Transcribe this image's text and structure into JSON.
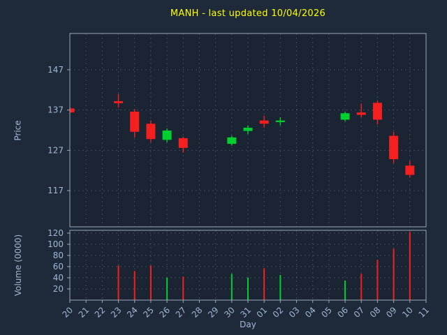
{
  "title": "MANH - last updated 10/04/2026",
  "axes": {
    "price_label": "Price",
    "volume_label": "Volume (0000)",
    "x_label": "Day"
  },
  "colors": {
    "background": "#1e2a3a",
    "panel": "#1a2432",
    "border": "#9aa8ba",
    "grid": "#7487a0",
    "text": "#a3b7d4",
    "title": "#ffff00",
    "up": "#00cf30",
    "down": "#f42020"
  },
  "chart_data": {
    "type": "candlestick",
    "title": "MANH - last updated 10/04/2026",
    "xlabel": "Day",
    "ylabel_price": "Price",
    "ylabel_volume": "Volume (0000)",
    "x_categories": [
      "20",
      "21",
      "22",
      "23",
      "24",
      "25",
      "26",
      "27",
      "28",
      "29",
      "30",
      "31",
      "01",
      "02",
      "03",
      "04",
      "05",
      "06",
      "07",
      "08",
      "09",
      "10",
      "11"
    ],
    "price_ticks": [
      117,
      127,
      137,
      147
    ],
    "price_range": [
      108,
      156
    ],
    "volume_ticks": [
      20,
      40,
      60,
      80,
      100,
      120
    ],
    "volume_range": [
      0,
      125
    ],
    "grid": true,
    "candles": [
      {
        "day": "20",
        "open": 137.4,
        "high": 137.8,
        "low": 136.2,
        "close": 136.4,
        "volume": 0
      },
      {
        "day": "23",
        "open": 139.2,
        "high": 141.0,
        "low": 137.6,
        "close": 138.7,
        "volume": 62
      },
      {
        "day": "24",
        "open": 136.6,
        "high": 137.2,
        "low": 130.2,
        "close": 131.6,
        "volume": 52
      },
      {
        "day": "25",
        "open": 133.6,
        "high": 134.4,
        "low": 129.0,
        "close": 129.8,
        "volume": 62
      },
      {
        "day": "26",
        "open": 129.6,
        "high": 132.4,
        "low": 129.0,
        "close": 131.9,
        "volume": 40
      },
      {
        "day": "27",
        "open": 130.0,
        "high": 130.4,
        "low": 126.4,
        "close": 127.6,
        "volume": 42
      },
      {
        "day": "30",
        "open": 128.6,
        "high": 130.6,
        "low": 128.2,
        "close": 130.2,
        "volume": 47
      },
      {
        "day": "31",
        "open": 131.8,
        "high": 133.2,
        "low": 131.0,
        "close": 132.6,
        "volume": 40
      },
      {
        "day": "01",
        "open": 134.4,
        "high": 135.6,
        "low": 132.6,
        "close": 133.6,
        "volume": 57
      },
      {
        "day": "02",
        "open": 134.0,
        "high": 135.2,
        "low": 133.2,
        "close": 134.4,
        "volume": 45
      },
      {
        "day": "06",
        "open": 134.6,
        "high": 136.6,
        "low": 134.2,
        "close": 136.2,
        "volume": 35
      },
      {
        "day": "07",
        "open": 136.4,
        "high": 138.6,
        "low": 135.2,
        "close": 135.8,
        "volume": 47
      },
      {
        "day": "08",
        "open": 138.8,
        "high": 139.4,
        "low": 133.4,
        "close": 134.6,
        "volume": 72
      },
      {
        "day": "09",
        "open": 130.6,
        "high": 131.6,
        "low": 123.8,
        "close": 124.8,
        "volume": 92
      },
      {
        "day": "10",
        "open": 123.2,
        "high": 124.4,
        "low": 120.2,
        "close": 120.9,
        "volume": 122
      }
    ]
  }
}
